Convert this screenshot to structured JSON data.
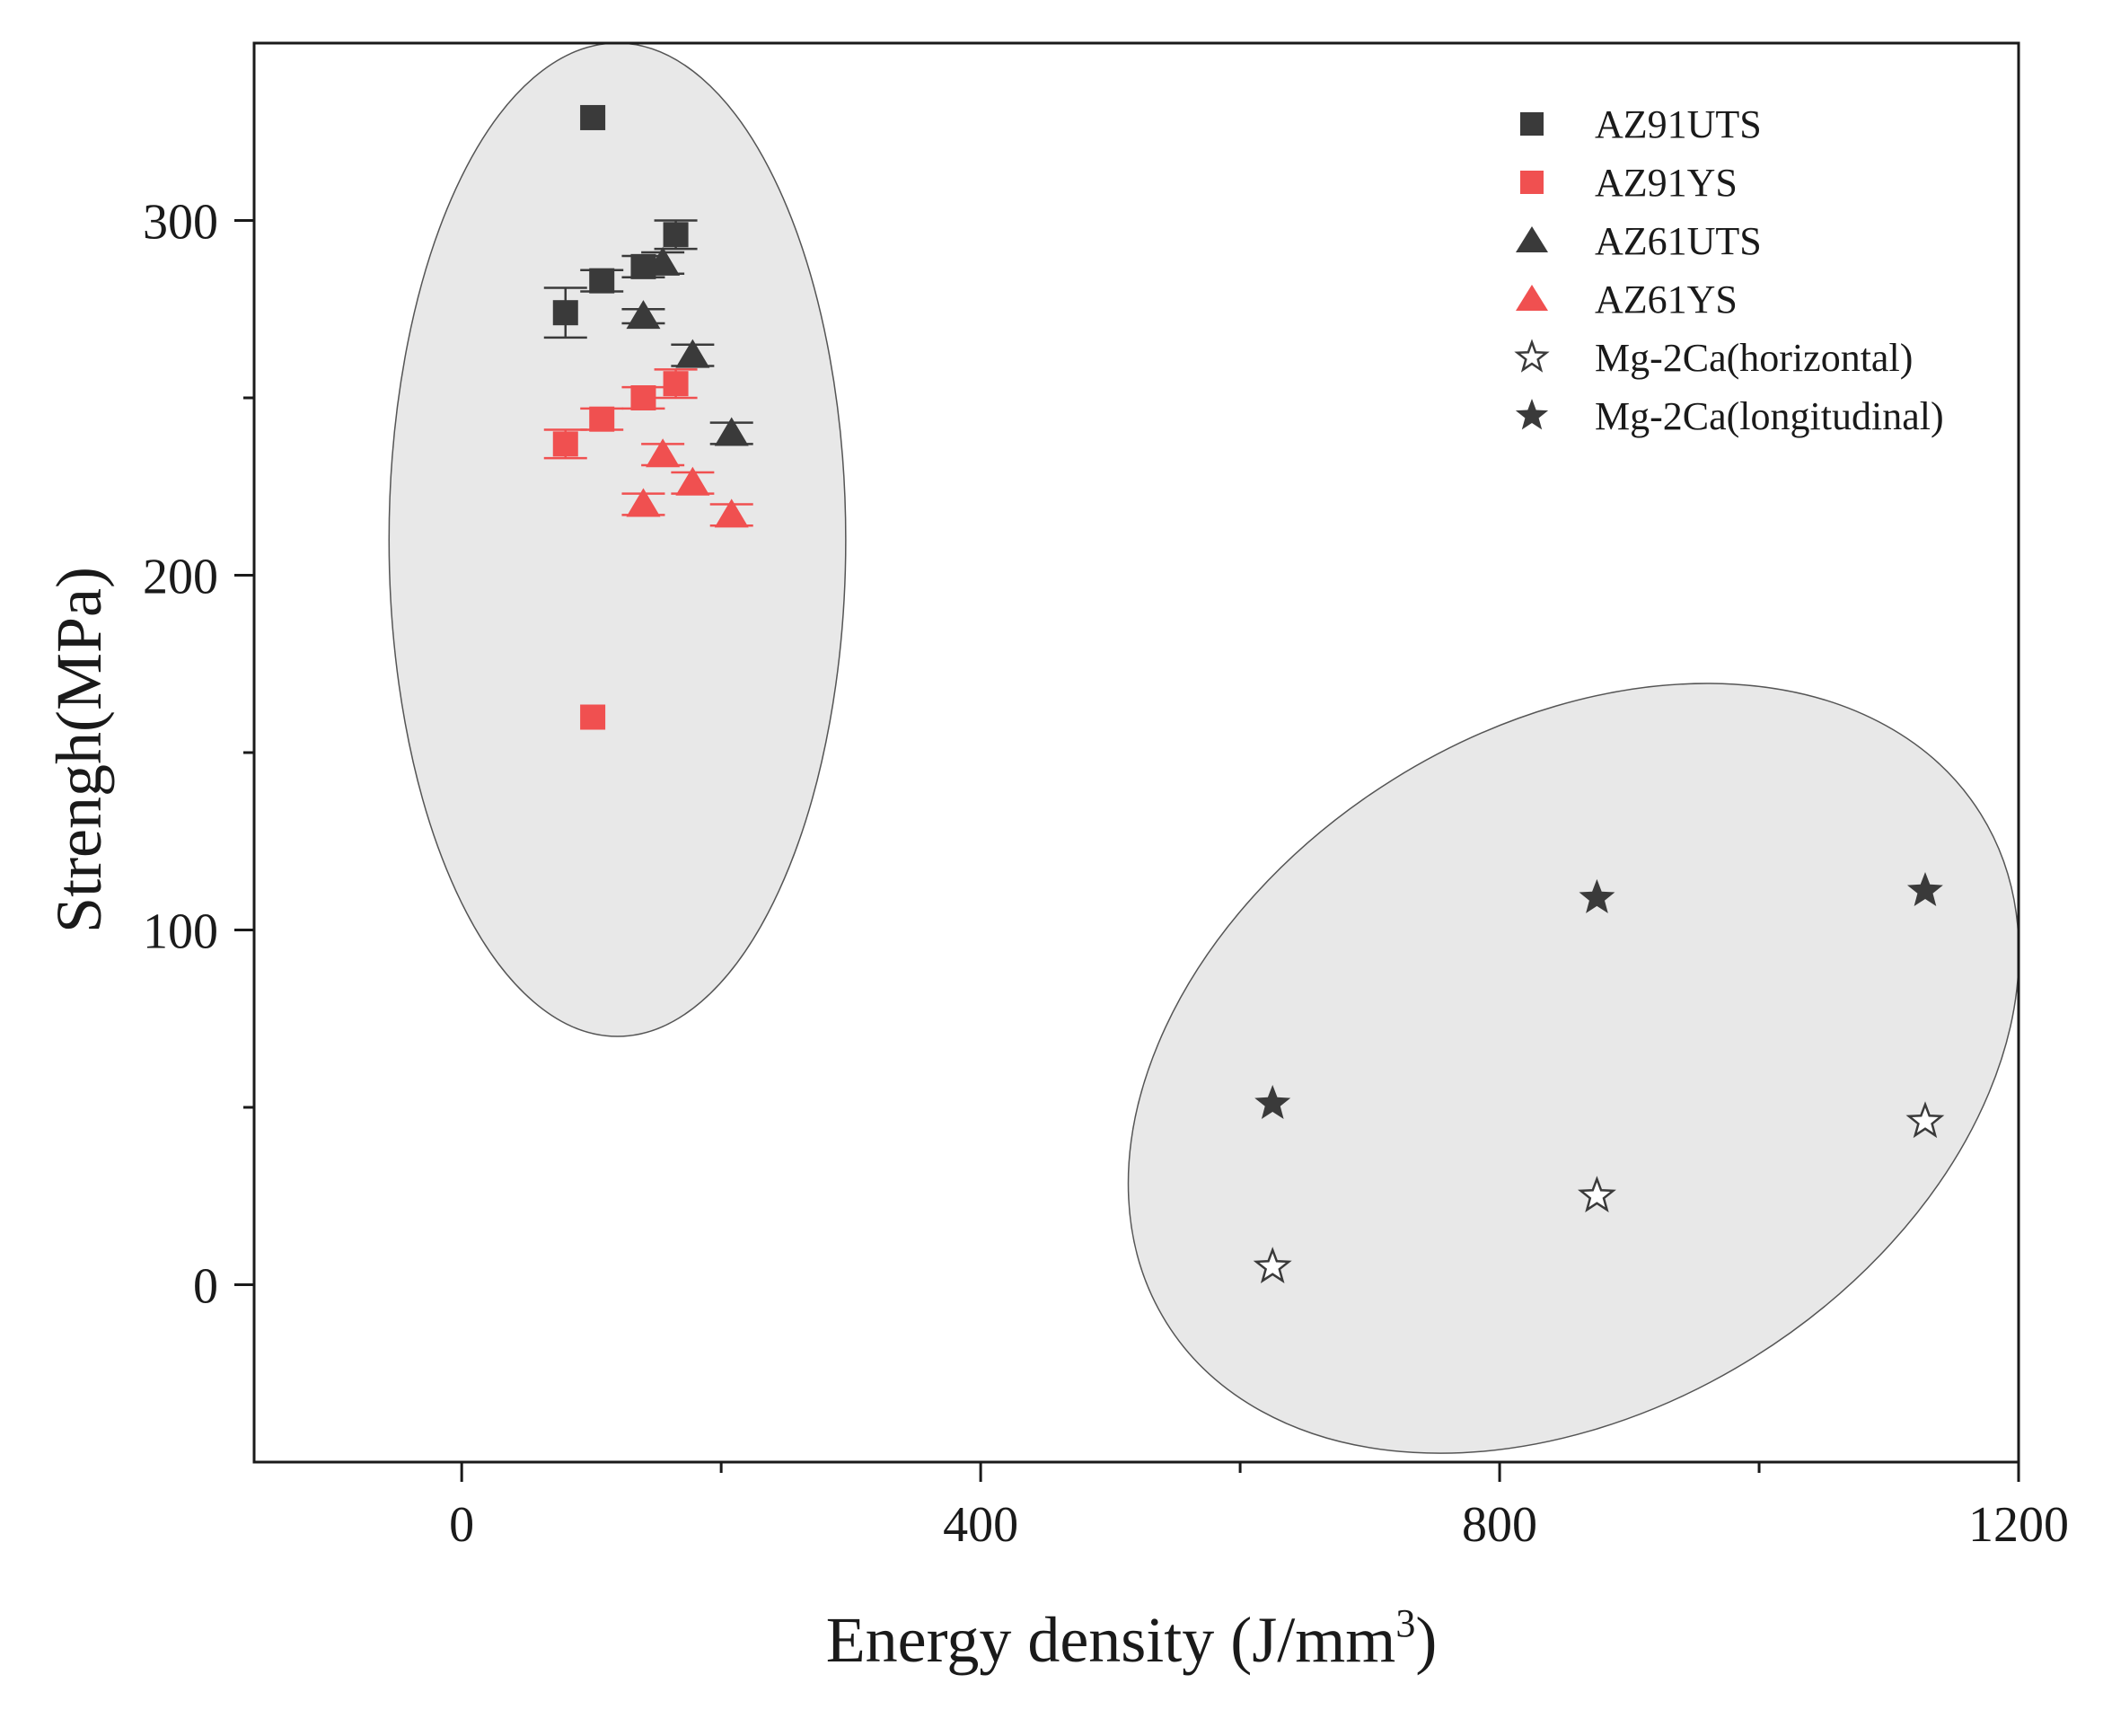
{
  "chart_data": {
    "type": "scatter",
    "title": "",
    "xlabel": "Energy density (J/mm",
    "xlabel_sup": "3",
    "xlabel_end": ")",
    "ylabel": "Strengh(MPa)",
    "xlim": [
      -160,
      1200
    ],
    "ylim": [
      -50,
      350
    ],
    "x_ticks": [
      0,
      400,
      800,
      1200
    ],
    "x_tick_labels": [
      "0",
      "400",
      "800",
      "1200"
    ],
    "x_minor_ticks": [
      200,
      600,
      1000
    ],
    "y_ticks": [
      0,
      100,
      200,
      300
    ],
    "y_tick_labels": [
      "0",
      "100",
      "200",
      "300"
    ],
    "y_minor_ticks": [
      50,
      150,
      250
    ],
    "legend_position": "top-right",
    "series": [
      {
        "name": "AZ91UTS",
        "marker": "square",
        "color": "#3a3a3a",
        "points": [
          {
            "x": 80,
            "y": 274,
            "err": 7
          },
          {
            "x": 101,
            "y": 329,
            "err": 0
          },
          {
            "x": 108,
            "y": 283,
            "err": 3
          },
          {
            "x": 140,
            "y": 287,
            "err": 3
          },
          {
            "x": 165,
            "y": 296,
            "err": 4
          }
        ]
      },
      {
        "name": "AZ91YS",
        "marker": "square",
        "color": "#f05050",
        "points": [
          {
            "x": 80,
            "y": 237,
            "err": 4
          },
          {
            "x": 101,
            "y": 160,
            "err": 0
          },
          {
            "x": 108,
            "y": 244,
            "err": 3
          },
          {
            "x": 140,
            "y": 250,
            "err": 3
          },
          {
            "x": 165,
            "y": 254,
            "err": 4
          }
        ]
      },
      {
        "name": "AZ61UTS",
        "marker": "triangle",
        "color": "#3a3a3a",
        "points": [
          {
            "x": 140,
            "y": 273,
            "err": 2
          },
          {
            "x": 155,
            "y": 288,
            "err": 3
          },
          {
            "x": 178,
            "y": 262,
            "err": 3
          },
          {
            "x": 208,
            "y": 240,
            "err": 3
          }
        ]
      },
      {
        "name": "AZ61YS",
        "marker": "triangle",
        "color": "#f05050",
        "points": [
          {
            "x": 140,
            "y": 220,
            "err": 3
          },
          {
            "x": 155,
            "y": 234,
            "err": 3
          },
          {
            "x": 178,
            "y": 226,
            "err": 3
          },
          {
            "x": 208,
            "y": 217,
            "err": 3
          }
        ]
      },
      {
        "name": "Mg-2Ca(horizontal)",
        "marker": "star-open",
        "color": "#3a3a3a",
        "points": [
          {
            "x": 625,
            "y": 5
          },
          {
            "x": 875,
            "y": 25
          },
          {
            "x": 1128,
            "y": 46
          }
        ]
      },
      {
        "name": "Mg-2Ca(longitudinal)",
        "marker": "star-filled",
        "color": "#3a3a3a",
        "points": [
          {
            "x": 625,
            "y": 51
          },
          {
            "x": 875,
            "y": 109
          },
          {
            "x": 1128,
            "y": 111
          }
        ]
      }
    ],
    "clusters": [
      {
        "name": "AZ-alloys-cluster",
        "cx": 120,
        "cy": 210,
        "rx_data": 176,
        "ry_data": 140,
        "rotation_deg": 0
      },
      {
        "name": "Mg-2Ca-cluster",
        "cx": 857,
        "cy": 61,
        "rx_data": 370,
        "ry_data": 96,
        "rotation_deg": -32
      }
    ]
  },
  "colors": {
    "cluster_fill": "#e8e8e8",
    "cluster_stroke": "#555555",
    "axis": "#1a1a1a"
  }
}
